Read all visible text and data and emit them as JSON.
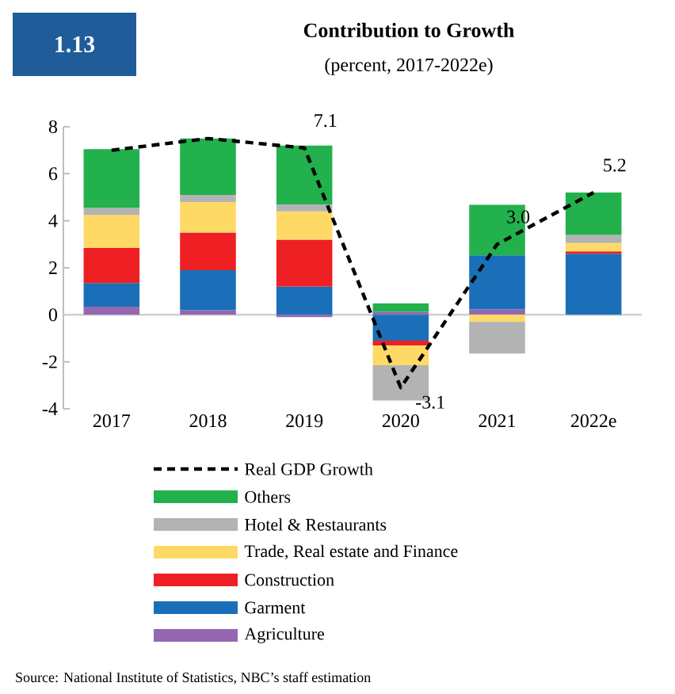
{
  "chart_data": {
    "type": "bar",
    "stacked": true,
    "title": "Contribution to Growth",
    "subtitle": "(percent, 2017-2022e)",
    "annotations": [
      "1.13",
      "Source: National Institute of Statistics, NBC’s staff estimation"
    ],
    "categories": [
      "2017",
      "2018",
      "2019",
      "2020",
      "2021",
      "2022e"
    ],
    "ylim": [
      -4,
      8
    ],
    "yticks": [
      -4,
      -2,
      0,
      2,
      4,
      6,
      8
    ],
    "legend": "bottom",
    "grid": false,
    "ref_lines": [
      {
        "axis": "y",
        "value": 0,
        "color": "#d0d0d0"
      }
    ],
    "series": [
      {
        "name": "Agriculture",
        "color": "#9467b0",
        "values": [
          0.35,
          0.2,
          -0.1,
          0.13,
          0.23,
          0
        ]
      },
      {
        "name": "Garment",
        "color": "#1a6fb8",
        "values": [
          1.0,
          1.7,
          1.2,
          -1.1,
          2.3,
          2.6
        ]
      },
      {
        "name": "Construction",
        "color": "#ee2024",
        "values": [
          1.5,
          1.6,
          2.0,
          -0.2,
          0,
          0.1
        ]
      },
      {
        "name": "Trade, Real estate and Finance",
        "color": "#ffd966",
        "values": [
          1.4,
          1.3,
          1.2,
          -0.85,
          -0.3,
          0.35
        ]
      },
      {
        "name": "Hotel & Restaurants",
        "color": "#b3b3b3",
        "values": [
          0.3,
          0.3,
          0.3,
          -1.5,
          -1.35,
          0.35
        ]
      },
      {
        "name": "Others",
        "color": "#22b14c",
        "values": [
          2.5,
          2.4,
          2.5,
          0.35,
          2.15,
          1.8
        ]
      },
      {
        "name": "Real GDP Growth",
        "type": "line",
        "color": "#000000",
        "line_style": "dashed",
        "marker": "none",
        "values": [
          7.0,
          7.5,
          7.1,
          -3.1,
          3.0,
          5.2
        ],
        "value_labels": [
          null,
          null,
          "7.1",
          "-3.1",
          "3.0",
          "5.2"
        ]
      }
    ]
  }
}
